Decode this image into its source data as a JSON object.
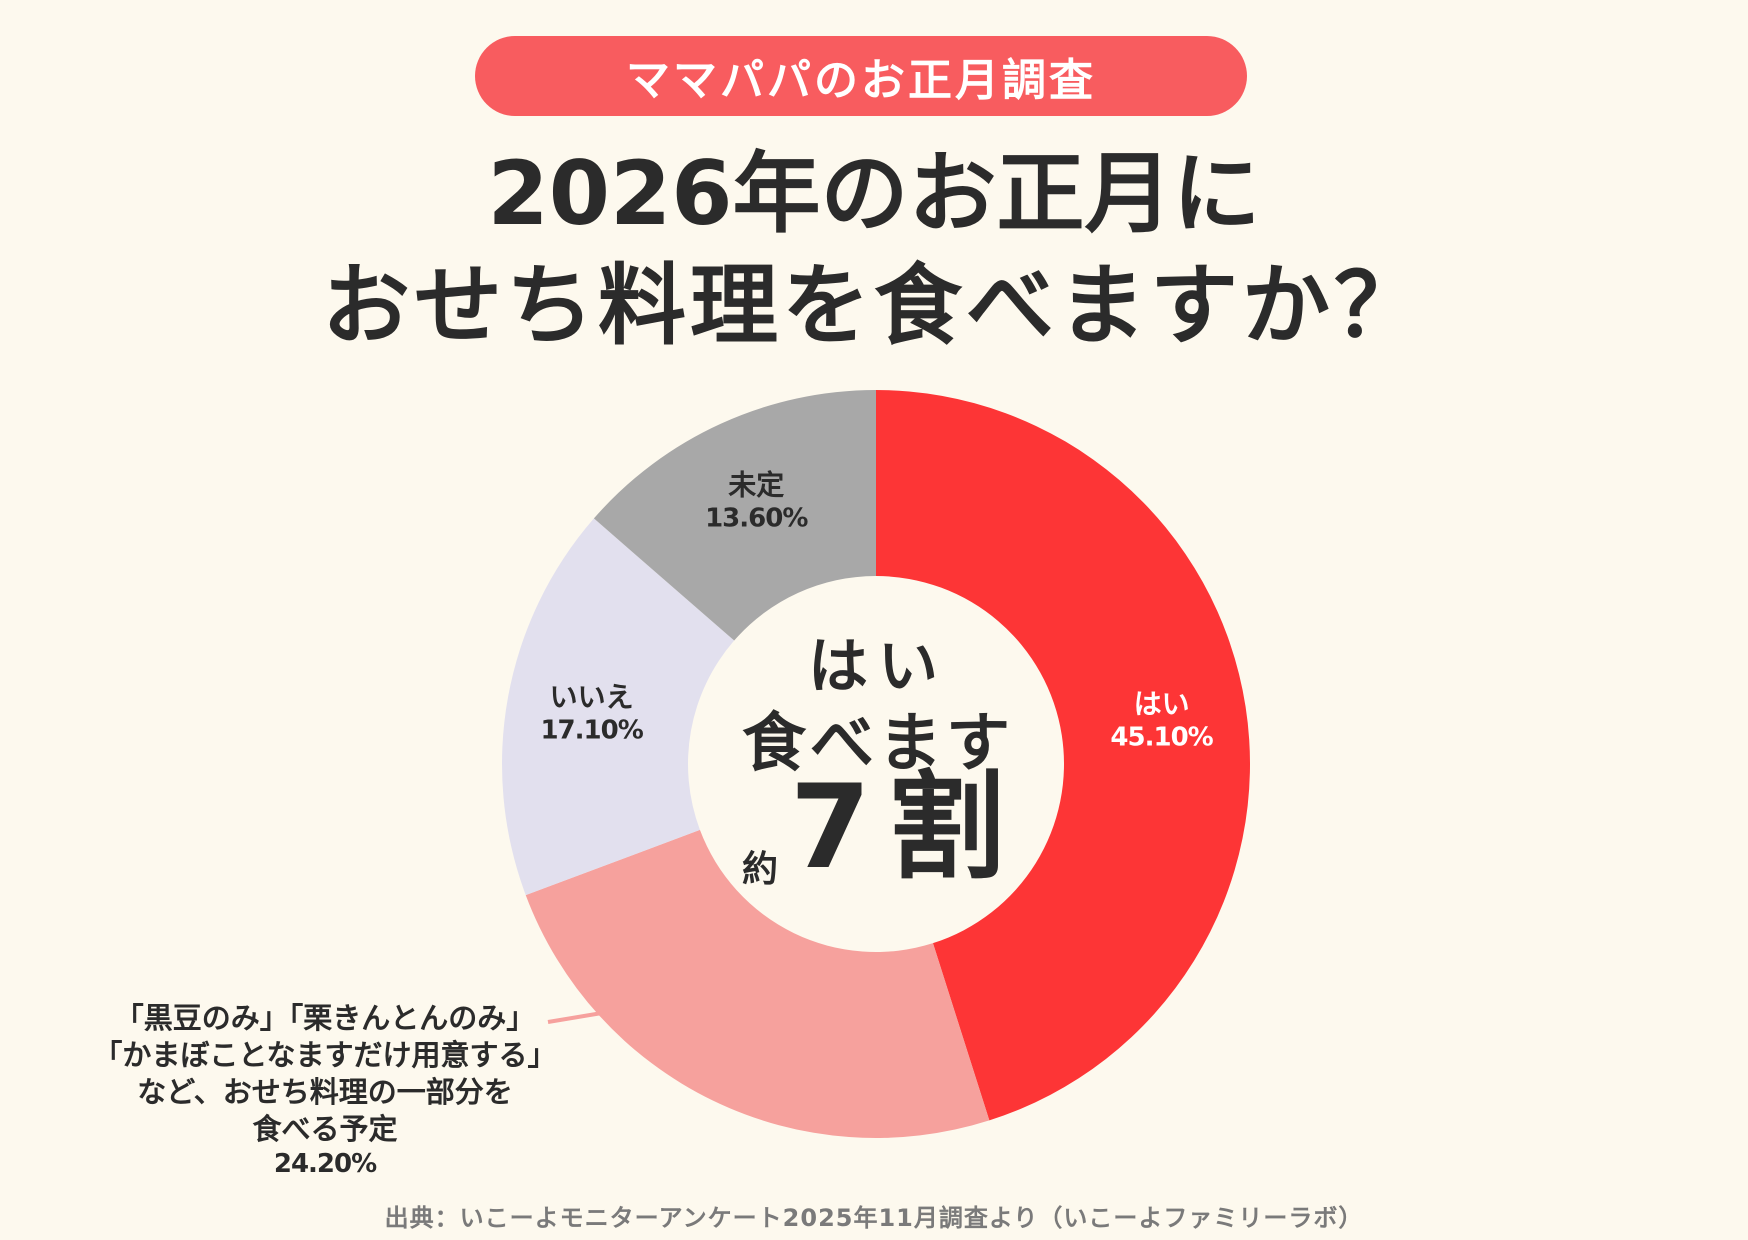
{
  "badge": "ママパパのお正月調査",
  "title_line1": "2026年のお正月に",
  "title_line2": "おせち料理を食べますか？",
  "center": {
    "line1": "はい",
    "line2": "食べます",
    "prefix": "約",
    "big": "7割"
  },
  "callout": {
    "line1": "「黒豆のみ」「栗きんとんのみ」",
    "line2": "「かまぼことなますだけ用意する」",
    "line3": "など、おせち料理の一部分を",
    "line4": "食べる予定",
    "pct": "24.20%"
  },
  "source": "出典：いこーよモニターアンケート2025年11月調査より（いこーよファミリーラボ）",
  "chart_data": {
    "type": "pie",
    "donut": true,
    "start_angle": "12 o'clock, clockwise",
    "slices": [
      {
        "name": "はい",
        "value": 45.1,
        "label": "45.10%",
        "color": "#fd3536"
      },
      {
        "name": "おせち料理の一部分を食べる予定",
        "value": 24.2,
        "label": "24.20%",
        "color": "#f6a19d"
      },
      {
        "name": "いいえ",
        "value": 17.1,
        "label": "17.10%",
        "color": "#e2e0ee"
      },
      {
        "name": "未定",
        "value": 13.6,
        "label": "13.60%",
        "color": "#a8a8a8"
      }
    ]
  }
}
